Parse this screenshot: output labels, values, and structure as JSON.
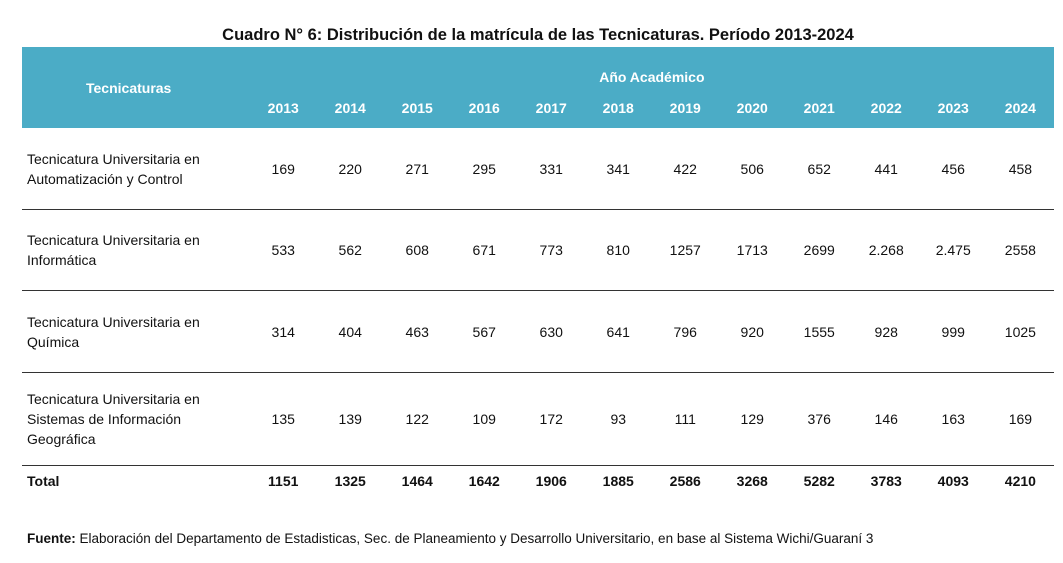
{
  "title": "Cuadro N° 6: Distribución de la matrícula de las Tecnicaturas. Período 2013-2024",
  "header": {
    "name_label": "Tecnicaturas",
    "group_label": "Año Académico",
    "years": [
      "2013",
      "2014",
      "2015",
      "2016",
      "2017",
      "2018",
      "2019",
      "2020",
      "2021",
      "2022",
      "2023",
      "2024"
    ]
  },
  "rows": [
    {
      "name": "Tecnicatura Universitaria en Automatización y Control",
      "values": [
        "169",
        "220",
        "271",
        "295",
        "331",
        "341",
        "422",
        "506",
        "652",
        "441",
        "456",
        "458"
      ]
    },
    {
      "name": "Tecnicatura Universitaria en Informática",
      "values": [
        "533",
        "562",
        "608",
        "671",
        "773",
        "810",
        "1257",
        "1713",
        "2699",
        "2.268",
        "2.475",
        "2558"
      ]
    },
    {
      "name": "Tecnicatura Universitaria en Química",
      "values": [
        "314",
        "404",
        "463",
        "567",
        "630",
        "641",
        "796",
        "920",
        "1555",
        "928",
        "999",
        "1025"
      ]
    },
    {
      "name": "Tecnicatura Universitaria en Sistemas de Información Geográfica",
      "values": [
        "135",
        "139",
        "122",
        "109",
        "172",
        "93",
        "111",
        "129",
        "376",
        "146",
        "163",
        "169"
      ]
    }
  ],
  "total": {
    "label": "Total",
    "values": [
      "1151",
      "1325",
      "1464",
      "1642",
      "1906",
      "1885",
      "2586",
      "3268",
      "5282",
      "3783",
      "4093",
      "4210"
    ]
  },
  "source": {
    "label": "Fuente:",
    "text": "Elaboración del Departamento de Estadisticas, Sec. de Planeamiento y Desarrollo Universitario, en base al Sistema Wichi/Guaraní 3"
  },
  "colors": {
    "header_background": "#4bacc6",
    "header_text": "#ffffff",
    "row_divider": "#333333"
  }
}
